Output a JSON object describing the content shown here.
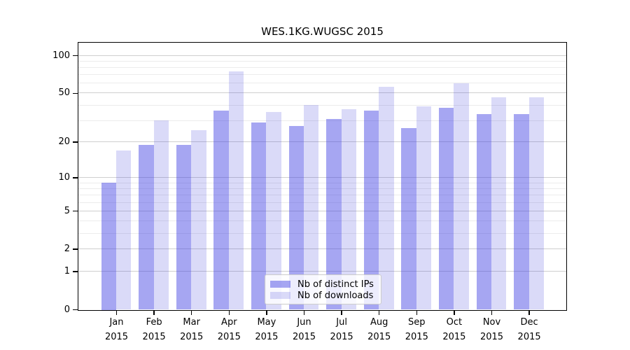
{
  "chart_data": {
    "type": "bar",
    "title": "WES.1KG.WUGSC 2015",
    "categories": [
      "Jan",
      "Feb",
      "Mar",
      "Apr",
      "May",
      "Jun",
      "Jul",
      "Aug",
      "Sep",
      "Oct",
      "Nov",
      "Dec"
    ],
    "category_year": "2015",
    "series": [
      {
        "name": "Nb of distinct IPs",
        "color": "#a6a6f2",
        "fill_rgba": "rgba(57,57,226,0.45)",
        "values": [
          9,
          19,
          19,
          36,
          29,
          27,
          31,
          36,
          26,
          38,
          34,
          34
        ]
      },
      {
        "name": "Nb of downloads",
        "color": "#dadaf8",
        "fill_rgba": "rgba(70,70,220,0.20)",
        "values": [
          17,
          30,
          25,
          75,
          35,
          40,
          37,
          56,
          39,
          60,
          46,
          46
        ]
      }
    ],
    "yaxis": {
      "scale": "log10(1+v)",
      "tick_values": [
        0,
        1,
        2,
        5,
        10,
        20,
        50,
        100
      ],
      "tick_labels": [
        "0",
        "1",
        "2",
        "5",
        "10",
        "20",
        "50",
        "100"
      ],
      "minor_gridline_values": [
        3,
        4,
        6,
        7,
        8,
        9,
        30,
        40,
        60,
        70,
        80,
        90
      ],
      "range_max": 128
    },
    "grid": true,
    "legend_position": "lower center"
  },
  "colors": {
    "grid_major": "#cfcfcf",
    "grid_minor": "#ececec",
    "axis": "#000000",
    "legend_border": "#cccccc"
  }
}
